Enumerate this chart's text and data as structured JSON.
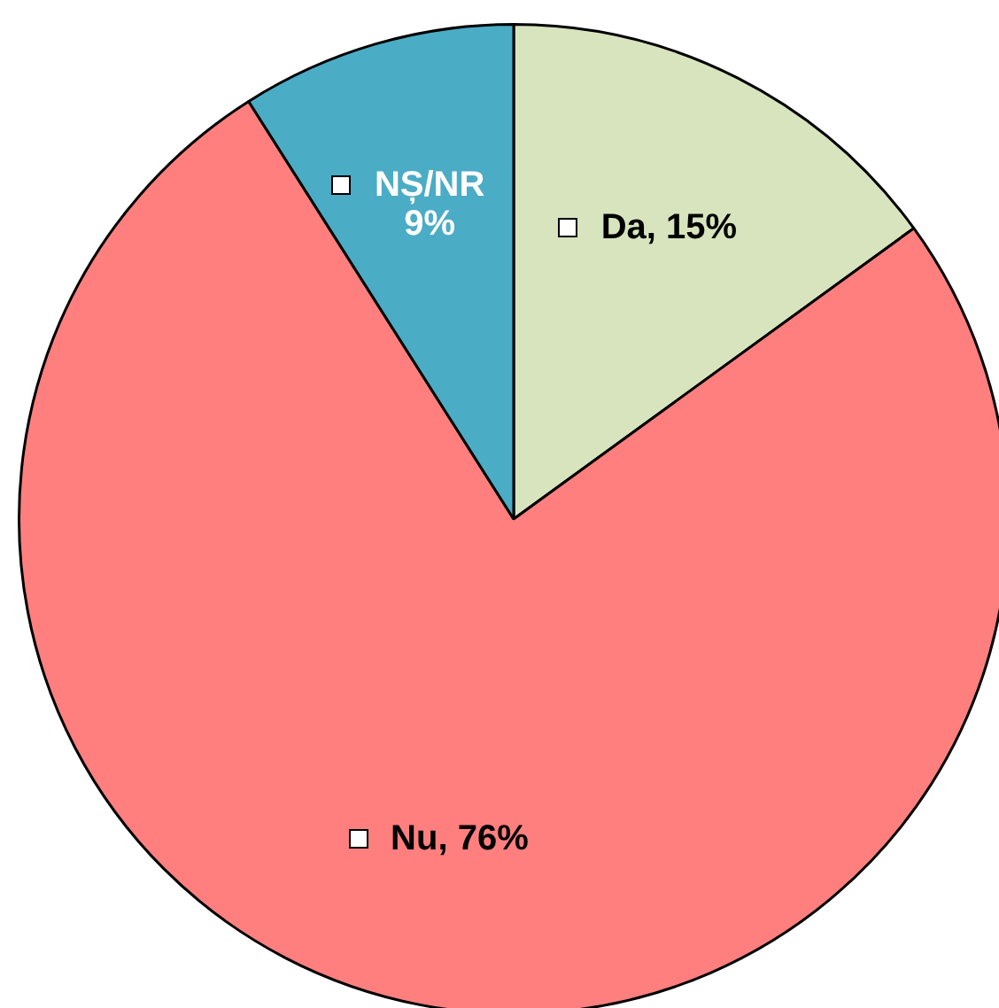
{
  "chart_data": {
    "type": "pie",
    "categories": [
      "Da",
      "Nu",
      "NȘ/NR"
    ],
    "values": [
      15,
      76,
      9
    ],
    "colors": [
      "#d7e4bd",
      "#ff7f7f",
      "#4bacc6"
    ],
    "value_labels": [
      "15%",
      "76%",
      "9%"
    ]
  }
}
